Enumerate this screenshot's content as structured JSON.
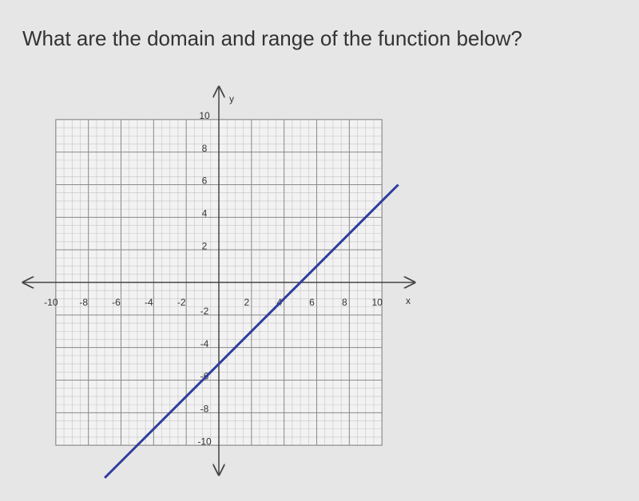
{
  "chart_data": {
    "type": "line",
    "title": "What are the domain and range of the function below?",
    "x_label": "x",
    "y_label": "y",
    "x": [
      -7,
      11
    ],
    "values": [
      -12,
      6
    ],
    "color": "#2f3c9c",
    "xlim": [
      -12,
      12
    ],
    "ylim": [
      -12,
      12
    ],
    "xticks": [
      -10,
      -8,
      -6,
      -4,
      -2,
      2,
      4,
      6,
      8,
      10
    ],
    "yticks": [
      -10,
      -8,
      -6,
      -4,
      -2,
      2,
      4,
      6,
      8,
      10
    ],
    "grid": true
  }
}
